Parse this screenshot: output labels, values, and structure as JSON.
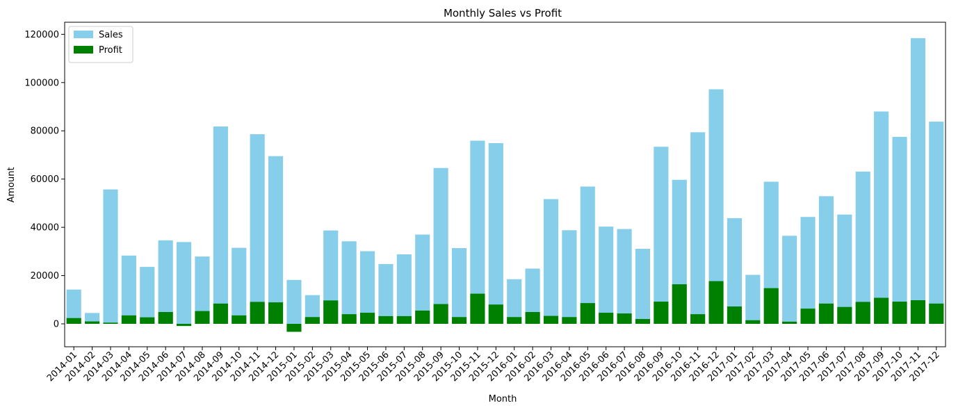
{
  "chart_data": {
    "type": "bar",
    "title": "Monthly Sales vs Profit",
    "xlabel": "Month",
    "ylabel": "Amount",
    "ylim": [
      -9500,
      125000
    ],
    "yticks": [
      0,
      20000,
      40000,
      60000,
      80000,
      100000,
      120000
    ],
    "grid": false,
    "legend_position": "top-left",
    "categories": [
      "2014-01",
      "2014-02",
      "2014-03",
      "2014-04",
      "2014-05",
      "2014-06",
      "2014-07",
      "2014-08",
      "2014-09",
      "2014-10",
      "2014-11",
      "2014-12",
      "2015-01",
      "2015-02",
      "2015-03",
      "2015-04",
      "2015-05",
      "2015-06",
      "2015-07",
      "2015-08",
      "2015-09",
      "2015-10",
      "2015-11",
      "2015-12",
      "2016-01",
      "2016-02",
      "2016-03",
      "2016-04",
      "2016-05",
      "2016-06",
      "2016-07",
      "2016-08",
      "2016-09",
      "2016-10",
      "2016-11",
      "2016-12",
      "2017-01",
      "2017-02",
      "2017-03",
      "2017-04",
      "2017-05",
      "2017-06",
      "2017-07",
      "2017-08",
      "2017-09",
      "2017-10",
      "2017-11",
      "2017-12"
    ],
    "series": [
      {
        "name": "Sales",
        "color": "#87CEEB",
        "values": [
          14200,
          4500,
          55700,
          28300,
          23600,
          34600,
          33900,
          27900,
          81800,
          31500,
          78600,
          69500,
          18200,
          11900,
          38700,
          34200,
          30100,
          24800,
          28800,
          37000,
          64600,
          31400,
          75900,
          74900,
          18500,
          22900,
          51700,
          38800,
          56900,
          40300,
          39300,
          31100,
          73400,
          59700,
          79400,
          97200,
          43800,
          20300,
          58900,
          36500,
          44300,
          52900,
          45300,
          63100,
          88000,
          77500,
          118400,
          83800
        ]
      },
      {
        "name": "Profit",
        "color": "#008000",
        "values": [
          2400,
          1000,
          500,
          3500,
          2700,
          4900,
          -900,
          5300,
          8400,
          3500,
          9100,
          8900,
          -3300,
          2800,
          9700,
          4000,
          4600,
          3200,
          3200,
          5500,
          8200,
          2800,
          12500,
          8000,
          2800,
          4900,
          3300,
          2800,
          8600,
          4600,
          4300,
          2000,
          9200,
          16400,
          4000,
          17700,
          7200,
          1500,
          14800,
          900,
          6300,
          8400,
          7000,
          9100,
          10800,
          9200,
          9800,
          8400
        ]
      }
    ]
  }
}
